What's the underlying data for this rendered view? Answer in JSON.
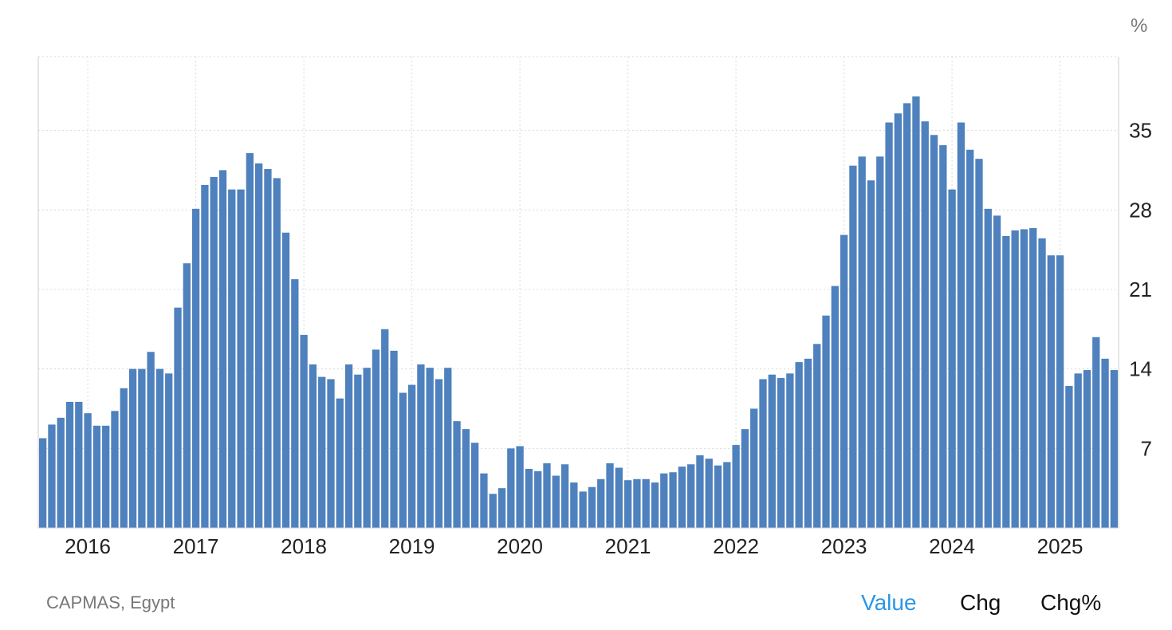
{
  "chart_data": {
    "type": "bar",
    "unit_label": "%",
    "x_tick_labels": [
      "2016",
      "2017",
      "2018",
      "2019",
      "2020",
      "2021",
      "2022",
      "2023",
      "2024",
      "2025"
    ],
    "y_ticks": [
      7,
      14,
      21,
      28,
      35
    ],
    "ylim": [
      0,
      41.5
    ],
    "grid": true,
    "color": "#4e81bd",
    "start": "2015-08",
    "values": [
      7.9,
      9.1,
      9.7,
      11.1,
      11.1,
      10.1,
      9.0,
      9.0,
      10.3,
      12.3,
      14.0,
      14.0,
      15.5,
      14.0,
      13.6,
      19.4,
      23.3,
      28.1,
      30.2,
      30.9,
      31.5,
      29.8,
      29.8,
      33.0,
      32.1,
      31.6,
      30.8,
      26.0,
      21.9,
      17.0,
      14.4,
      13.3,
      13.1,
      11.4,
      14.4,
      13.5,
      14.1,
      15.7,
      17.5,
      15.6,
      11.9,
      12.6,
      14.4,
      14.1,
      13.1,
      14.1,
      9.4,
      8.7,
      7.5,
      4.8,
      3.0,
      3.5,
      7.0,
      7.2,
      5.2,
      5.0,
      5.7,
      4.6,
      5.6,
      4.0,
      3.2,
      3.6,
      4.3,
      5.7,
      5.3,
      4.2,
      4.3,
      4.3,
      4.0,
      4.8,
      4.9,
      5.4,
      5.6,
      6.4,
      6.1,
      5.5,
      5.8,
      7.3,
      8.7,
      10.5,
      13.1,
      13.5,
      13.2,
      13.6,
      14.6,
      14.9,
      16.2,
      18.7,
      21.3,
      25.8,
      31.9,
      32.7,
      30.6,
      32.7,
      35.7,
      36.5,
      37.4,
      38.0,
      35.8,
      34.6,
      33.7,
      29.8,
      35.7,
      33.3,
      32.5,
      28.1,
      27.5,
      25.7,
      26.2,
      26.3,
      26.4,
      25.5,
      24.0,
      24.0,
      12.5,
      13.6,
      13.9,
      16.8,
      14.9,
      13.9
    ]
  },
  "unit_label": "%",
  "source": "CAPMAS, Egypt",
  "tabs": {
    "value": "Value",
    "chg": "Chg",
    "chgp": "Chg%"
  },
  "colors": {
    "bar": "#4e81bd",
    "active_tab": "#2b96e8",
    "grid": "#dddddd"
  }
}
